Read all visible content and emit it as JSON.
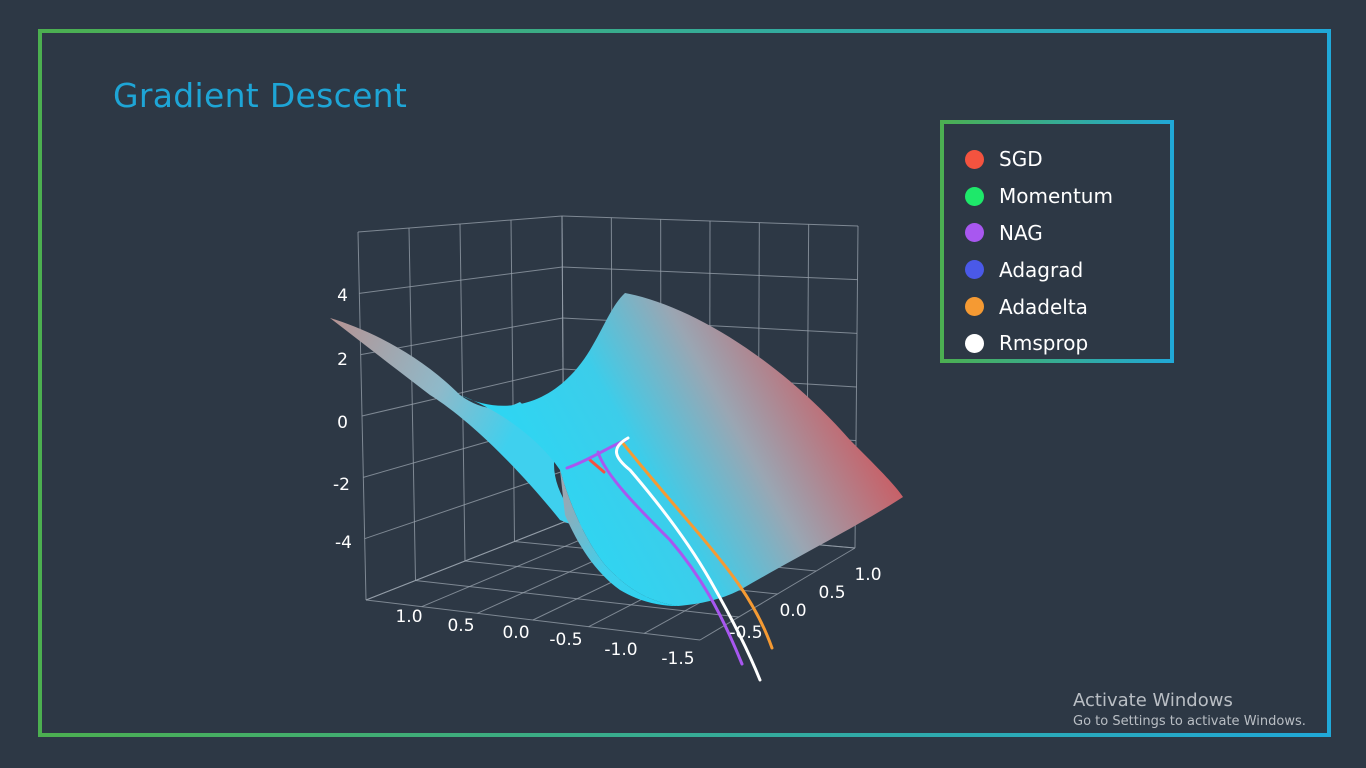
{
  "title": "Gradient Descent",
  "legend": [
    {
      "label": "SGD",
      "color": "#f4533f"
    },
    {
      "label": "Momentum",
      "color": "#1ee86a"
    },
    {
      "label": "NAG",
      "color": "#a857f0"
    },
    {
      "label": "Adagrad",
      "color": "#4a59e8"
    },
    {
      "label": "Adadelta",
      "color": "#f59a33"
    },
    {
      "label": "Rmsprop",
      "color": "#ffffff"
    }
  ],
  "chart_data": {
    "type": "surface",
    "title": "Gradient Descent",
    "z_ticks": [
      "4",
      "2",
      "0",
      "-2",
      "-4"
    ],
    "x_ticks": [
      "1.0",
      "0.5",
      "0.0",
      "-0.5",
      "-1.0",
      "-1.5"
    ],
    "y_ticks": [
      "1.0",
      "0.5",
      "0.0",
      "-0.5"
    ],
    "colorscale": [
      "#2ad8f5",
      "#d9454a"
    ],
    "series": [
      {
        "name": "SGD",
        "color": "#f4533f"
      },
      {
        "name": "Momentum",
        "color": "#1ee86a"
      },
      {
        "name": "NAG",
        "color": "#a857f0"
      },
      {
        "name": "Adagrad",
        "color": "#4a59e8"
      },
      {
        "name": "Adadelta",
        "color": "#f59a33"
      },
      {
        "name": "Rmsprop",
        "color": "#ffffff"
      }
    ]
  },
  "watermark": {
    "line1": "Activate Windows",
    "line2": "Go to Settings to activate Windows."
  }
}
